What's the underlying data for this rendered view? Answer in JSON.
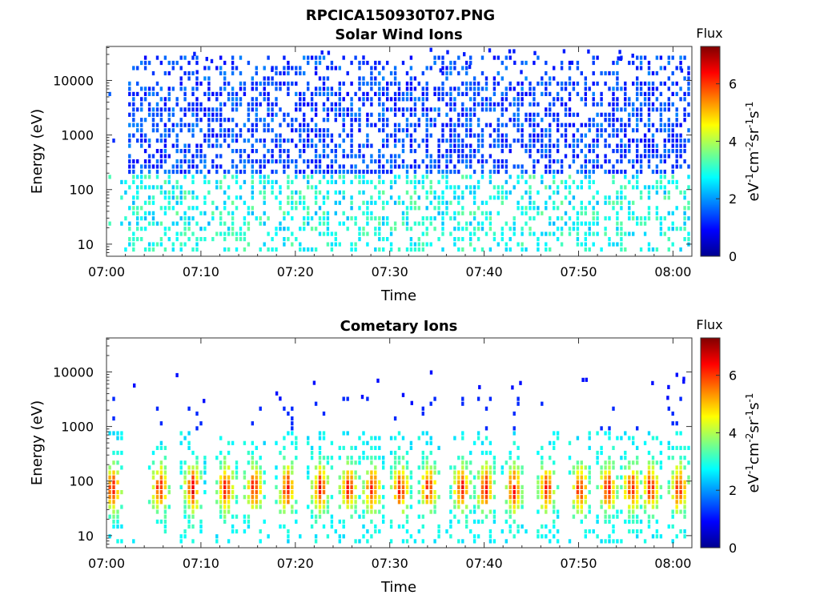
{
  "figure": {
    "title": "RPCICA150930T07.PNG"
  },
  "chart_data": [
    {
      "type": "heatmap",
      "title": "Solar Wind Ions",
      "xlabel": "Time",
      "ylabel": "Energy (eV)",
      "x_ticks": [
        "07:00",
        "07:10",
        "07:20",
        "07:30",
        "07:40",
        "07:50",
        "08:00"
      ],
      "xlim_minutes": [
        0,
        62
      ],
      "y_scale": "log",
      "y_ticks": [
        "10",
        "100",
        "1000",
        "10000"
      ],
      "ylim": [
        6,
        42000
      ],
      "colorbar": {
        "title": "Flux",
        "label": "eV-1cm-2sr-1s-1",
        "range": [
          0,
          7.3
        ],
        "ticks": [
          "0",
          "2",
          "4",
          "6"
        ]
      },
      "grid": false,
      "description_of_values": "sparse blue dots (flux ~1-2) spread 200-20000 eV from 07:02 onward; cyan-green (flux ~2.5-3.5) bands below 300 eV"
    },
    {
      "type": "heatmap",
      "title": "Cometary Ions",
      "xlabel": "Time",
      "ylabel": "Energy (eV)",
      "x_ticks": [
        "07:00",
        "07:10",
        "07:20",
        "07:30",
        "07:40",
        "07:50",
        "08:00"
      ],
      "xlim_minutes": [
        0,
        62
      ],
      "y_scale": "log",
      "y_ticks": [
        "10",
        "100",
        "1000",
        "10000"
      ],
      "ylim": [
        6,
        42000
      ],
      "colorbar": {
        "title": "Flux",
        "label": "eV-1cm-2sr-1s-1",
        "range": [
          0,
          7.3
        ],
        "ticks": [
          "0",
          "2",
          "4",
          "6"
        ]
      },
      "grid": false,
      "bursts_minutes": [
        0.5,
        5.5,
        9.0,
        12.5,
        15.5,
        19.0,
        22.5,
        25.5,
        28.0,
        31.0,
        34.0,
        37.5,
        40.0,
        43.0,
        46.5,
        50.0,
        53.0,
        55.5,
        57.5,
        60.5
      ],
      "burst_peak_energy_eV": 80,
      "burst_peak_flux": 6.2
    }
  ]
}
